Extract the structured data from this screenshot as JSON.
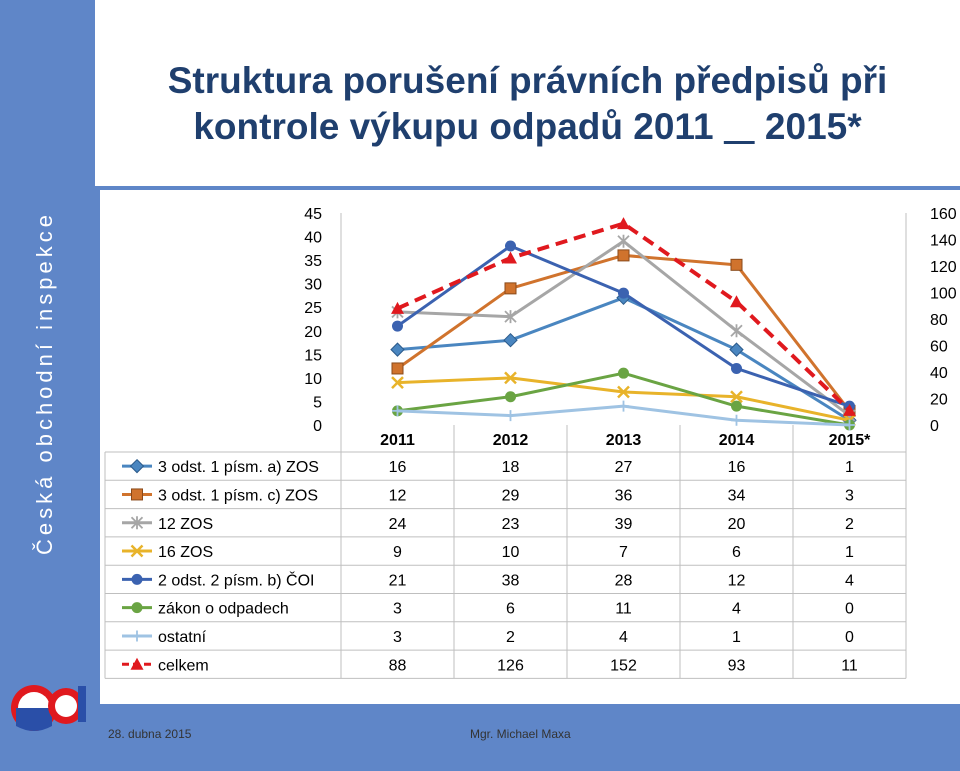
{
  "sidebar": {
    "text": "Česká obchodní inspekce"
  },
  "title": {
    "line1": "Struktura porušení právních předpisů při",
    "line2_prefix": "kontrole výkupu odpadů 2011 ",
    "line2_underlined": "   ",
    "line2_suffix": " 2015*"
  },
  "footer": {
    "date": "28. dubna 2015",
    "author": "Mgr. Michael Maxa"
  },
  "chart_data": {
    "type": "line",
    "categories": [
      "2011",
      "2012",
      "2013",
      "2014",
      "2015*"
    ],
    "left_axis": {
      "min": 0,
      "max": 45,
      "ticks": [
        "45",
        "40",
        "35",
        "30",
        "25",
        "20",
        "15",
        "10",
        "5",
        "0"
      ]
    },
    "right_axis": {
      "min": 0,
      "max": 160,
      "ticks": [
        "160",
        "140",
        "120",
        "100",
        "80",
        "60",
        "40",
        "20",
        "0"
      ]
    },
    "grid": false,
    "legend": "data-table-below",
    "series": [
      {
        "name": "3 odst. 1 písm. a) ZOS",
        "values": [
          16,
          18,
          27,
          16,
          1
        ],
        "color": "#4a86c0",
        "marker": "diamond",
        "axis": "left",
        "dashed": false
      },
      {
        "name": "3 odst. 1 písm. c) ZOS",
        "values": [
          12,
          29,
          36,
          34,
          3
        ],
        "color": "#d0732d",
        "marker": "square",
        "axis": "left",
        "dashed": false
      },
      {
        "name": "12 ZOS",
        "values": [
          24,
          23,
          39,
          20,
          2
        ],
        "color": "#a6a6a6",
        "marker": "star",
        "axis": "left",
        "dashed": false
      },
      {
        "name": "16 ZOS",
        "values": [
          9,
          10,
          7,
          6,
          1
        ],
        "color": "#e8b32a",
        "marker": "x",
        "axis": "left",
        "dashed": false
      },
      {
        "name": "2 odst. 2 písm. b) ČOI",
        "values": [
          21,
          38,
          28,
          12,
          4
        ],
        "color": "#3b62b0",
        "marker": "circle",
        "axis": "left",
        "dashed": false
      },
      {
        "name": "zákon o odpadech",
        "values": [
          3,
          6,
          11,
          4,
          0
        ],
        "color": "#6aa443",
        "marker": "circle",
        "axis": "left",
        "dashed": false
      },
      {
        "name": "ostatní",
        "values": [
          3,
          2,
          4,
          1,
          0
        ],
        "color": "#9fc3e3",
        "marker": "plus",
        "axis": "left",
        "dashed": false
      },
      {
        "name": "celkem",
        "values": [
          88,
          126,
          152,
          93,
          11
        ],
        "color": "#e0191e",
        "marker": "triangle",
        "axis": "right",
        "dashed": true
      }
    ]
  }
}
